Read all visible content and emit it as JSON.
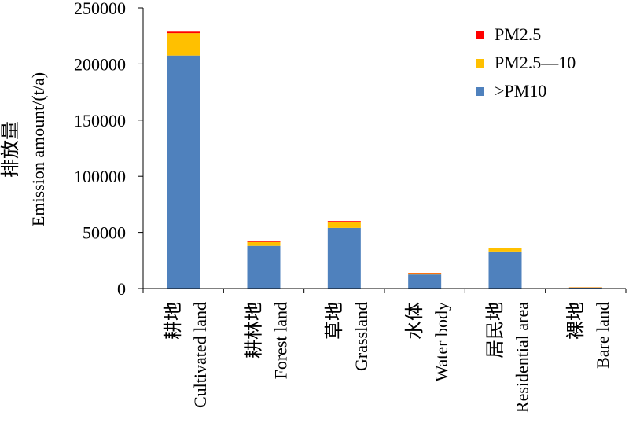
{
  "chart_data": {
    "type": "bar",
    "stacked": true,
    "ylabel_cn": "排放量",
    "ylabel_en": "Emission amount/(t/a)",
    "ylim": [
      0,
      250000
    ],
    "yticks": [
      0,
      50000,
      100000,
      150000,
      200000,
      250000
    ],
    "categories": [
      {
        "cn": "耕地",
        "en": "Cultivated land"
      },
      {
        "cn": "耕林地",
        "en": "Forest land"
      },
      {
        "cn": "草地",
        "en": "Grassland"
      },
      {
        "cn": "水体",
        "en": "Water body"
      },
      {
        "cn": "居民地",
        "en": "Residential area"
      },
      {
        "cn": "裸地",
        "en": "Bare land"
      }
    ],
    "series": [
      {
        "name": ">PM10",
        "color": "#4F81BD",
        "values": [
          207500,
          38000,
          54000,
          12500,
          33000,
          800
        ]
      },
      {
        "name": "PM2.5—10",
        "color": "#FFC000",
        "values": [
          20000,
          3500,
          5500,
          1200,
          3000,
          300
        ]
      },
      {
        "name": "PM2.5",
        "color": "#FF0000",
        "values": [
          1300,
          600,
          600,
          300,
          400,
          100
        ]
      }
    ],
    "legend": {
      "position": "top-right",
      "order": [
        "PM2.5",
        "PM2.5—10",
        ">PM10"
      ]
    },
    "grid": false
  }
}
